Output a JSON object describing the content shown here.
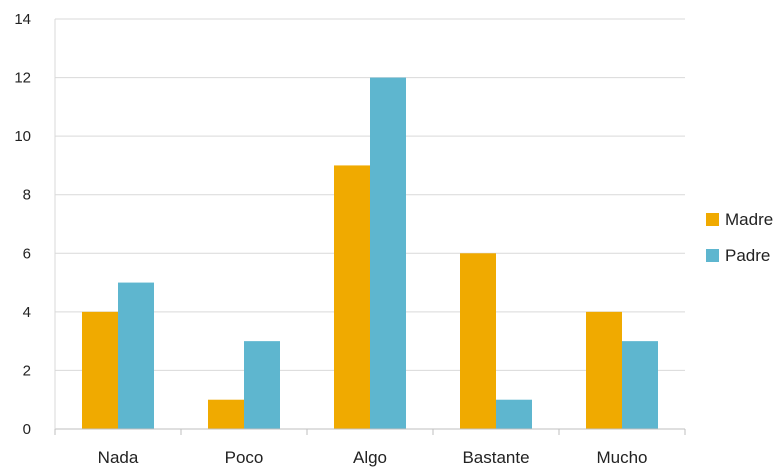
{
  "chart_data": {
    "type": "bar",
    "title": "",
    "xlabel": "",
    "ylabel": "",
    "categories": [
      "Nada",
      "Poco",
      "Algo",
      "Bastante",
      "Mucho"
    ],
    "series": [
      {
        "name": "Madre",
        "values": [
          4,
          1,
          9,
          6,
          4
        ],
        "color": "#f0aa00"
      },
      {
        "name": "Padre",
        "values": [
          5,
          3,
          12,
          1,
          3
        ],
        "color": "#5eb6cf"
      }
    ],
    "ylim": [
      0,
      14
    ],
    "yticks": [
      "0",
      "2",
      "4",
      "6",
      "8",
      "10",
      "12",
      "14"
    ],
    "grid": true,
    "legend_position": "right"
  }
}
